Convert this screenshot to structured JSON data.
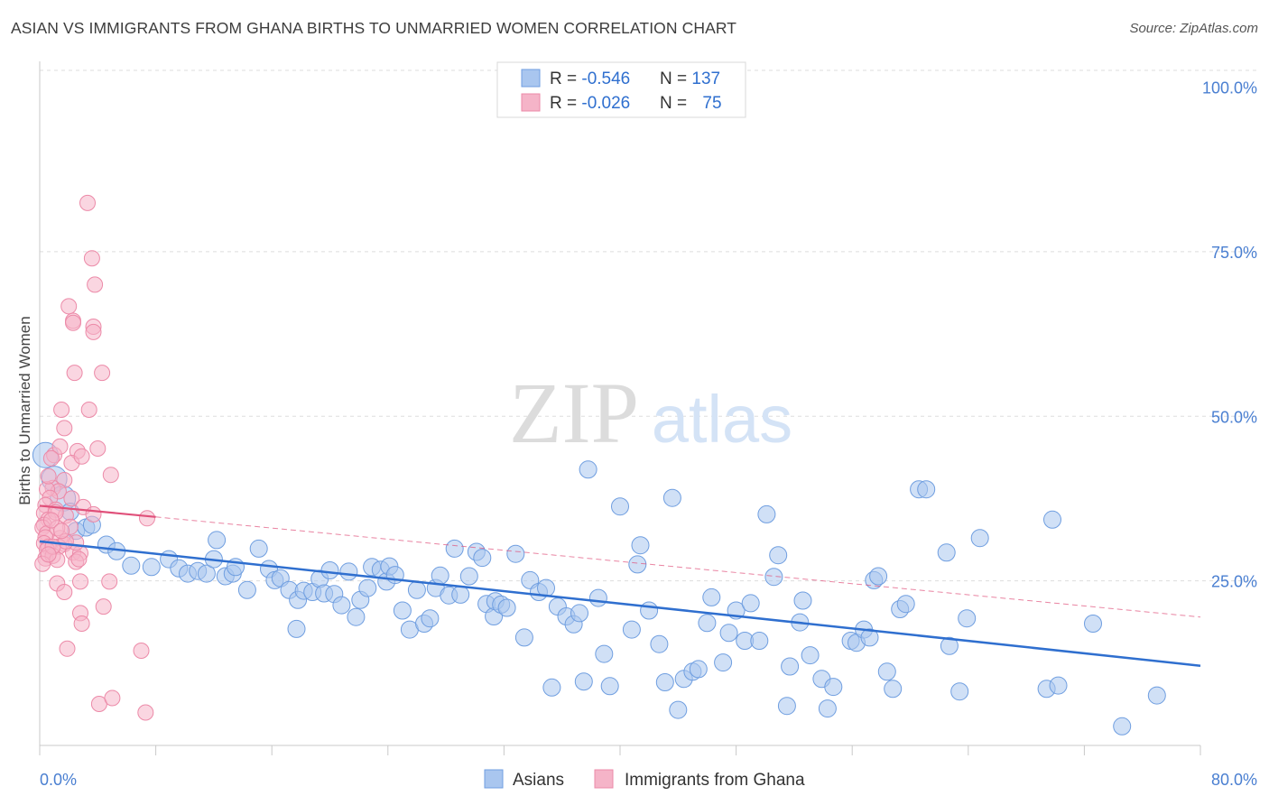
{
  "title": "ASIAN VS IMMIGRANTS FROM GHANA BIRTHS TO UNMARRIED WOMEN CORRELATION CHART",
  "source": "Source: ZipAtlas.com",
  "watermark": {
    "zip": "ZIP",
    "atlas": "atlas"
  },
  "chart_data": {
    "type": "scatter",
    "ylabel": "Births to Unmarried Women",
    "xlim": [
      0,
      80
    ],
    "ylim": [
      0,
      100
    ],
    "x_tick_labels": [
      {
        "value": 0,
        "label": "0.0%"
      },
      {
        "value": 80,
        "label": "80.0%"
      }
    ],
    "y_tick_labels": [
      {
        "value": 25,
        "label": "25.0%"
      },
      {
        "value": 50,
        "label": "50.0%"
      },
      {
        "value": 75,
        "label": "75.0%"
      },
      {
        "value": 100,
        "label": "100.0%"
      }
    ],
    "grid": true,
    "legend_placement": "top-center",
    "colors": {
      "asians_fill": "#a9c6ef",
      "asians_stroke": "#6f9ee0",
      "asians_line": "#2f6fcf",
      "ghana_fill": "#f5b4c8",
      "ghana_stroke": "#ec8aa8",
      "ghana_line": "#e0507a",
      "tick_label": "#4a7fd1",
      "grid": "#dddddd"
    },
    "stats": [
      {
        "r_label": "R = ",
        "r_value": "-0.546",
        "n_label": "N = ",
        "n_value": "137"
      },
      {
        "r_label": "R = ",
        "r_value": "-0.026",
        "n_label": "N = ",
        "n_value": "75"
      }
    ],
    "series": [
      {
        "name": "Asians",
        "trend": {
          "x": [
            0,
            80
          ],
          "y": [
            31.0,
            12.1
          ]
        },
        "points": [
          [
            0.4,
            44.1
          ],
          [
            1.0,
            40.5
          ],
          [
            1.6,
            37.5
          ],
          [
            2.1,
            35.5
          ],
          [
            2.5,
            32.6
          ],
          [
            3.2,
            33.1
          ],
          [
            3.6,
            33.5
          ],
          [
            4.6,
            30.5
          ],
          [
            5.3,
            29.5
          ],
          [
            6.3,
            27.3
          ],
          [
            7.7,
            27.1
          ],
          [
            8.9,
            28.3
          ],
          [
            9.6,
            26.9
          ],
          [
            10.2,
            26.1
          ],
          [
            10.9,
            26.5
          ],
          [
            11.5,
            26.1
          ],
          [
            12.0,
            28.3
          ],
          [
            12.2,
            31.2
          ],
          [
            12.8,
            25.7
          ],
          [
            13.3,
            26.1
          ],
          [
            13.5,
            27.1
          ],
          [
            14.3,
            23.6
          ],
          [
            15.1,
            29.9
          ],
          [
            15.8,
            26.8
          ],
          [
            16.2,
            25.1
          ],
          [
            16.6,
            25.4
          ],
          [
            17.2,
            23.6
          ],
          [
            17.7,
            17.7
          ],
          [
            17.8,
            22.1
          ],
          [
            18.2,
            23.5
          ],
          [
            18.8,
            23.3
          ],
          [
            19.3,
            25.3
          ],
          [
            19.6,
            23.1
          ],
          [
            20.0,
            26.6
          ],
          [
            20.3,
            23.0
          ],
          [
            20.8,
            21.3
          ],
          [
            21.3,
            26.4
          ],
          [
            21.8,
            19.5
          ],
          [
            22.1,
            22.1
          ],
          [
            22.6,
            23.9
          ],
          [
            22.9,
            27.1
          ],
          [
            23.5,
            26.7
          ],
          [
            23.9,
            24.9
          ],
          [
            24.1,
            27.2
          ],
          [
            24.5,
            25.9
          ],
          [
            25.0,
            20.5
          ],
          [
            25.5,
            17.6
          ],
          [
            26.0,
            23.6
          ],
          [
            26.5,
            18.5
          ],
          [
            26.9,
            19.3
          ],
          [
            27.3,
            23.9
          ],
          [
            27.6,
            25.8
          ],
          [
            28.2,
            22.8
          ],
          [
            28.6,
            29.9
          ],
          [
            29.0,
            22.9
          ],
          [
            29.6,
            25.7
          ],
          [
            30.1,
            29.4
          ],
          [
            30.5,
            28.5
          ],
          [
            30.8,
            21.5
          ],
          [
            31.3,
            19.6
          ],
          [
            31.4,
            21.9
          ],
          [
            31.8,
            21.4
          ],
          [
            32.2,
            20.9
          ],
          [
            32.8,
            29.1
          ],
          [
            33.4,
            16.4
          ],
          [
            33.8,
            25.1
          ],
          [
            34.4,
            23.3
          ],
          [
            34.9,
            23.9
          ],
          [
            35.3,
            8.8
          ],
          [
            35.7,
            21.1
          ],
          [
            36.3,
            19.6
          ],
          [
            36.8,
            18.4
          ],
          [
            37.2,
            20.1
          ],
          [
            37.5,
            9.7
          ],
          [
            37.8,
            41.9
          ],
          [
            38.5,
            22.4
          ],
          [
            38.9,
            13.9
          ],
          [
            39.3,
            9.0
          ],
          [
            40.0,
            36.3
          ],
          [
            40.8,
            17.6
          ],
          [
            41.2,
            27.5
          ],
          [
            41.4,
            30.4
          ],
          [
            42.0,
            20.5
          ],
          [
            42.7,
            15.4
          ],
          [
            43.1,
            9.6
          ],
          [
            43.6,
            37.6
          ],
          [
            44.0,
            5.4
          ],
          [
            44.4,
            10.1
          ],
          [
            45.0,
            11.2
          ],
          [
            45.4,
            11.6
          ],
          [
            46.0,
            18.6
          ],
          [
            46.3,
            22.5
          ],
          [
            47.1,
            12.6
          ],
          [
            47.5,
            17.1
          ],
          [
            48.0,
            20.5
          ],
          [
            48.6,
            15.9
          ],
          [
            49.0,
            21.6
          ],
          [
            49.6,
            15.9
          ],
          [
            50.1,
            35.1
          ],
          [
            50.6,
            25.6
          ],
          [
            50.9,
            28.9
          ],
          [
            51.5,
            6.0
          ],
          [
            51.7,
            12.0
          ],
          [
            52.4,
            18.7
          ],
          [
            52.6,
            22.0
          ],
          [
            53.1,
            13.7
          ],
          [
            53.9,
            10.1
          ],
          [
            54.3,
            5.6
          ],
          [
            54.7,
            8.9
          ],
          [
            55.9,
            15.9
          ],
          [
            56.3,
            15.6
          ],
          [
            56.8,
            17.6
          ],
          [
            57.2,
            16.4
          ],
          [
            57.5,
            25.1
          ],
          [
            57.8,
            25.7
          ],
          [
            58.4,
            11.2
          ],
          [
            58.8,
            8.6
          ],
          [
            59.3,
            20.7
          ],
          [
            59.7,
            21.5
          ],
          [
            60.6,
            38.9
          ],
          [
            61.1,
            38.9
          ],
          [
            62.5,
            29.3
          ],
          [
            62.7,
            15.1
          ],
          [
            63.4,
            8.2
          ],
          [
            63.9,
            19.3
          ],
          [
            64.8,
            31.5
          ],
          [
            69.4,
            8.6
          ],
          [
            69.8,
            34.3
          ],
          [
            70.2,
            9.1
          ],
          [
            72.6,
            18.5
          ],
          [
            74.6,
            2.9
          ],
          [
            77.0,
            7.6
          ]
        ]
      },
      {
        "name": "Immigrants from Ghana",
        "trend": {
          "x": [
            0,
            80
          ],
          "y": [
            36.4,
            19.5
          ]
        },
        "trend_solid_x_end": 8.0,
        "points": [
          [
            3.3,
            82.4
          ],
          [
            3.6,
            74.0
          ],
          [
            3.8,
            70.0
          ],
          [
            3.7,
            63.6
          ],
          [
            3.7,
            62.8
          ],
          [
            2.0,
            66.7
          ],
          [
            2.3,
            64.5
          ],
          [
            2.3,
            64.2
          ],
          [
            2.4,
            56.6
          ],
          [
            4.3,
            56.6
          ],
          [
            1.5,
            51.0
          ],
          [
            3.4,
            51.0
          ],
          [
            1.7,
            48.2
          ],
          [
            4.0,
            45.1
          ],
          [
            1.0,
            44.1
          ],
          [
            2.6,
            44.7
          ],
          [
            1.4,
            45.4
          ],
          [
            0.8,
            43.6
          ],
          [
            2.2,
            42.9
          ],
          [
            2.9,
            43.9
          ],
          [
            4.9,
            41.1
          ],
          [
            1.7,
            40.3
          ],
          [
            0.9,
            39.1
          ],
          [
            1.3,
            38.6
          ],
          [
            0.5,
            38.9
          ],
          [
            0.7,
            37.6
          ],
          [
            2.2,
            37.5
          ],
          [
            0.4,
            36.5
          ],
          [
            3.0,
            36.2
          ],
          [
            1.1,
            35.8
          ],
          [
            0.3,
            35.3
          ],
          [
            3.7,
            35.1
          ],
          [
            0.6,
            34.3
          ],
          [
            1.8,
            34.9
          ],
          [
            0.3,
            33.5
          ],
          [
            0.2,
            33.1
          ],
          [
            2.1,
            33.2
          ],
          [
            0.5,
            32.2
          ],
          [
            0.4,
            31.6
          ],
          [
            1.4,
            31.5
          ],
          [
            0.3,
            30.7
          ],
          [
            1.7,
            30.6
          ],
          [
            1.3,
            30.2
          ],
          [
            0.6,
            30.2
          ],
          [
            0.5,
            29.7
          ],
          [
            2.3,
            29.3
          ],
          [
            0.4,
            28.4
          ],
          [
            0.9,
            28.8
          ],
          [
            1.2,
            28.2
          ],
          [
            2.8,
            29.2
          ],
          [
            2.5,
            27.9
          ],
          [
            0.2,
            27.6
          ],
          [
            2.7,
            28.3
          ],
          [
            2.8,
            24.9
          ],
          [
            1.2,
            24.6
          ],
          [
            4.8,
            24.9
          ],
          [
            1.7,
            23.3
          ],
          [
            2.8,
            20.1
          ],
          [
            4.4,
            21.1
          ],
          [
            2.9,
            18.5
          ],
          [
            1.9,
            14.7
          ],
          [
            7.0,
            14.4
          ],
          [
            4.1,
            6.3
          ],
          [
            5.0,
            7.2
          ],
          [
            7.3,
            5.0
          ],
          [
            7.4,
            34.5
          ],
          [
            0.6,
            40.9
          ],
          [
            1.1,
            35.4
          ],
          [
            1.2,
            33.0
          ],
          [
            0.8,
            34.2
          ],
          [
            2.5,
            30.8
          ],
          [
            1.8,
            31.0
          ],
          [
            0.9,
            30.2
          ],
          [
            0.6,
            29.0
          ],
          [
            1.5,
            32.6
          ]
        ]
      }
    ]
  }
}
